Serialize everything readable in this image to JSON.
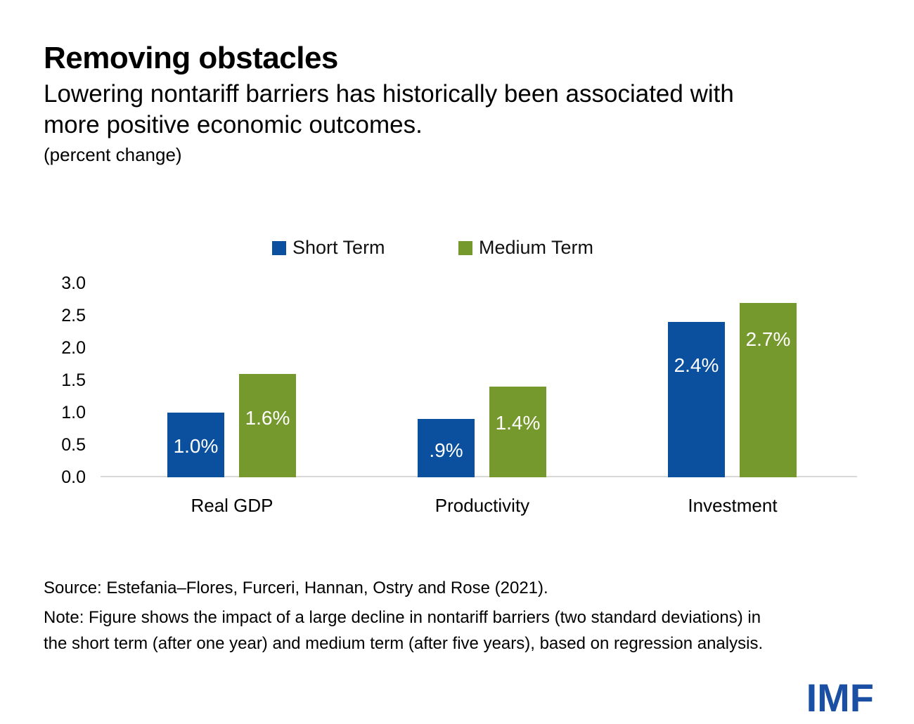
{
  "header": {
    "title": "Removing obstacles",
    "subtitle": "Lowering nontariff barriers has historically been associated with\nmore positive economic outcomes.",
    "unit": "(percent change)"
  },
  "legend": {
    "short_term": "Short Term",
    "medium_term": "Medium Term"
  },
  "colors": {
    "short_term": "#0B509E",
    "medium_term": "#76992E",
    "axis_line": "#d9d9d9",
    "imf_blue": "#1A4FA4"
  },
  "chart_data": {
    "type": "bar",
    "title": "Removing obstacles",
    "subtitle": "Lowering nontariff barriers has historically been associated with more positive economic outcomes.",
    "ylabel": "(percent change)",
    "categories": [
      "Real GDP",
      "Productivity",
      "Investment"
    ],
    "series": [
      {
        "name": "Short Term",
        "color_key": "short_term",
        "values": [
          1.0,
          0.9,
          2.4
        ],
        "labels": [
          "1.0%",
          ".9%",
          "2.4%"
        ],
        "label_offsets": [
          48,
          45,
          62
        ]
      },
      {
        "name": "Medium Term",
        "color_key": "medium_term",
        "values": [
          1.6,
          1.4,
          2.7
        ],
        "labels": [
          "1.6%",
          "1.4%",
          "2.7%"
        ],
        "label_offsets": [
          63,
          52,
          52
        ]
      }
    ],
    "ylim": [
      0.0,
      3.0
    ],
    "yticks": [
      "3.0",
      "2.5",
      "2.0",
      "1.5",
      "1.0",
      "0.5",
      "0.0"
    ],
    "grid": false,
    "legend_position": "top"
  },
  "footer": {
    "source": "Source: Estefania–Flores, Furceri, Hannan, Ostry and Rose (2021).",
    "note": "Note: Figure shows the impact of a large decline in nontariff barriers (two standard deviations) in\nthe short term (after one year) and medium term (after five years), based on regression analysis.",
    "logo": "IMF"
  }
}
